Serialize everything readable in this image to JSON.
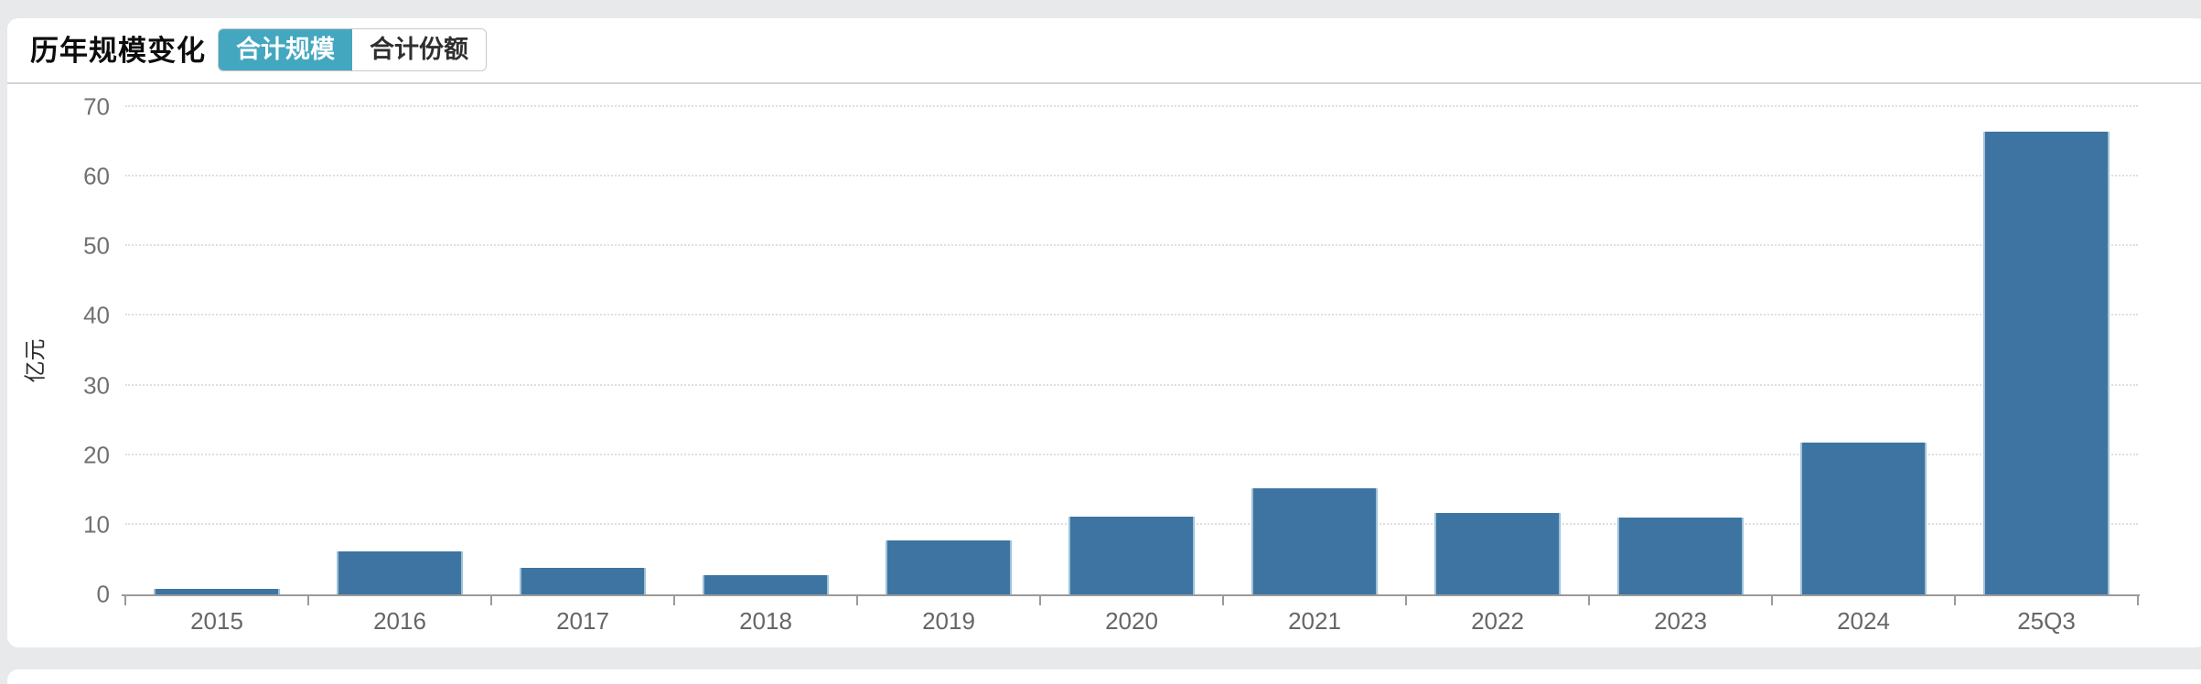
{
  "header": {
    "title": "历年规模变化",
    "tabs": [
      {
        "label": "合计规模",
        "active": true
      },
      {
        "label": "合计份额",
        "active": false
      }
    ]
  },
  "chart_data": {
    "type": "bar",
    "title": "历年规模变化",
    "categories": [
      "2015",
      "2016",
      "2017",
      "2018",
      "2019",
      "2020",
      "2021",
      "2022",
      "2023",
      "2024",
      "25Q3"
    ],
    "values": [
      0.8,
      6.2,
      3.8,
      2.7,
      7.8,
      11.1,
      15.2,
      11.7,
      11.0,
      21.8,
      66.4
    ],
    "xlabel": "",
    "ylabel": "亿元",
    "ylim": [
      0,
      70
    ],
    "yticks": [
      0,
      10,
      20,
      30,
      40,
      50,
      60,
      70
    ],
    "grid": "horizontal-dotted",
    "legend": "none",
    "bar_color": "#3d74a1"
  },
  "colors": {
    "page_background": "#e8e9eb",
    "card_background": "#ffffff",
    "accent_teal": "#44a7c0",
    "bar_blue": "#3d74a1",
    "axis_gray": "#9a9a9a",
    "grid_gray": "#dfdfdf"
  }
}
